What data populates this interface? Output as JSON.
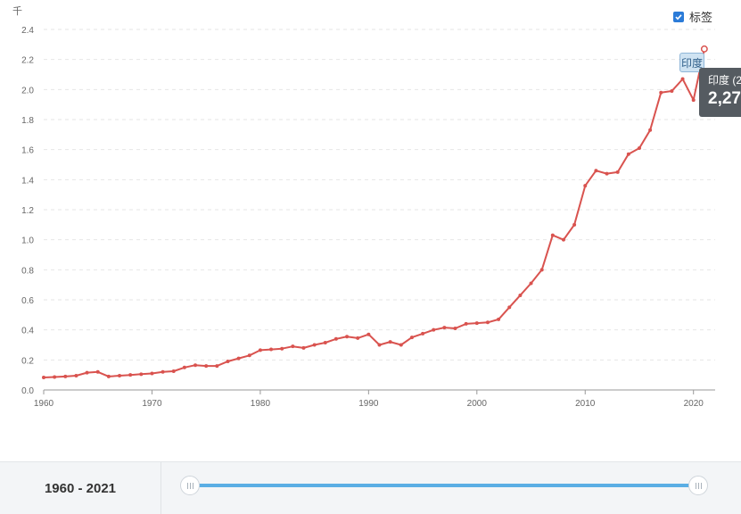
{
  "header": {
    "unit_label": "千"
  },
  "legend": {
    "checkbox_label": "标签",
    "checked": true
  },
  "tooltip": {
    "series_label": "印度 (2",
    "value_label": "2,27"
  },
  "point_label": "印度",
  "range": {
    "label": "1960 - 2021",
    "start": 1960,
    "end": 2021
  },
  "colors": {
    "line": "#d9534f",
    "slider": "#5aaee4",
    "tooltip_bg": "#555b61"
  },
  "chart_data": {
    "type": "line",
    "title": "",
    "xlabel": "",
    "ylabel": "千",
    "xlim": [
      1960,
      2022
    ],
    "ylim": [
      0,
      2.4
    ],
    "x_ticks": [
      1960,
      1970,
      1980,
      1990,
      2000,
      2010,
      2020
    ],
    "y_ticks": [
      "0.0",
      "0.2",
      "0.4",
      "0.6",
      "0.8",
      "1.0",
      "1.2",
      "1.4",
      "1.6",
      "1.8",
      "2.0",
      "2.2",
      "2.4"
    ],
    "grid": true,
    "series": [
      {
        "name": "印度",
        "x": [
          1960,
          1961,
          1962,
          1963,
          1964,
          1965,
          1966,
          1967,
          1968,
          1969,
          1970,
          1971,
          1972,
          1973,
          1974,
          1975,
          1976,
          1977,
          1978,
          1979,
          1980,
          1981,
          1982,
          1983,
          1984,
          1985,
          1986,
          1987,
          1988,
          1989,
          1990,
          1991,
          1992,
          1993,
          1994,
          1995,
          1996,
          1997,
          1998,
          1999,
          2000,
          2001,
          2002,
          2003,
          2004,
          2005,
          2006,
          2007,
          2008,
          2009,
          2010,
          2011,
          2012,
          2013,
          2014,
          2015,
          2016,
          2017,
          2018,
          2019,
          2020,
          2021
        ],
        "values": [
          0.083,
          0.086,
          0.09,
          0.095,
          0.115,
          0.12,
          0.09,
          0.095,
          0.1,
          0.105,
          0.11,
          0.12,
          0.125,
          0.15,
          0.165,
          0.16,
          0.16,
          0.19,
          0.21,
          0.23,
          0.265,
          0.27,
          0.275,
          0.29,
          0.28,
          0.3,
          0.315,
          0.34,
          0.355,
          0.345,
          0.37,
          0.3,
          0.32,
          0.3,
          0.35,
          0.375,
          0.4,
          0.415,
          0.41,
          0.44,
          0.445,
          0.45,
          0.47,
          0.55,
          0.63,
          0.71,
          0.8,
          1.03,
          1.0,
          1.1,
          1.36,
          1.46,
          1.44,
          1.45,
          1.57,
          1.61,
          1.73,
          1.98,
          1.99,
          2.07,
          1.93,
          2.27
        ]
      }
    ]
  }
}
